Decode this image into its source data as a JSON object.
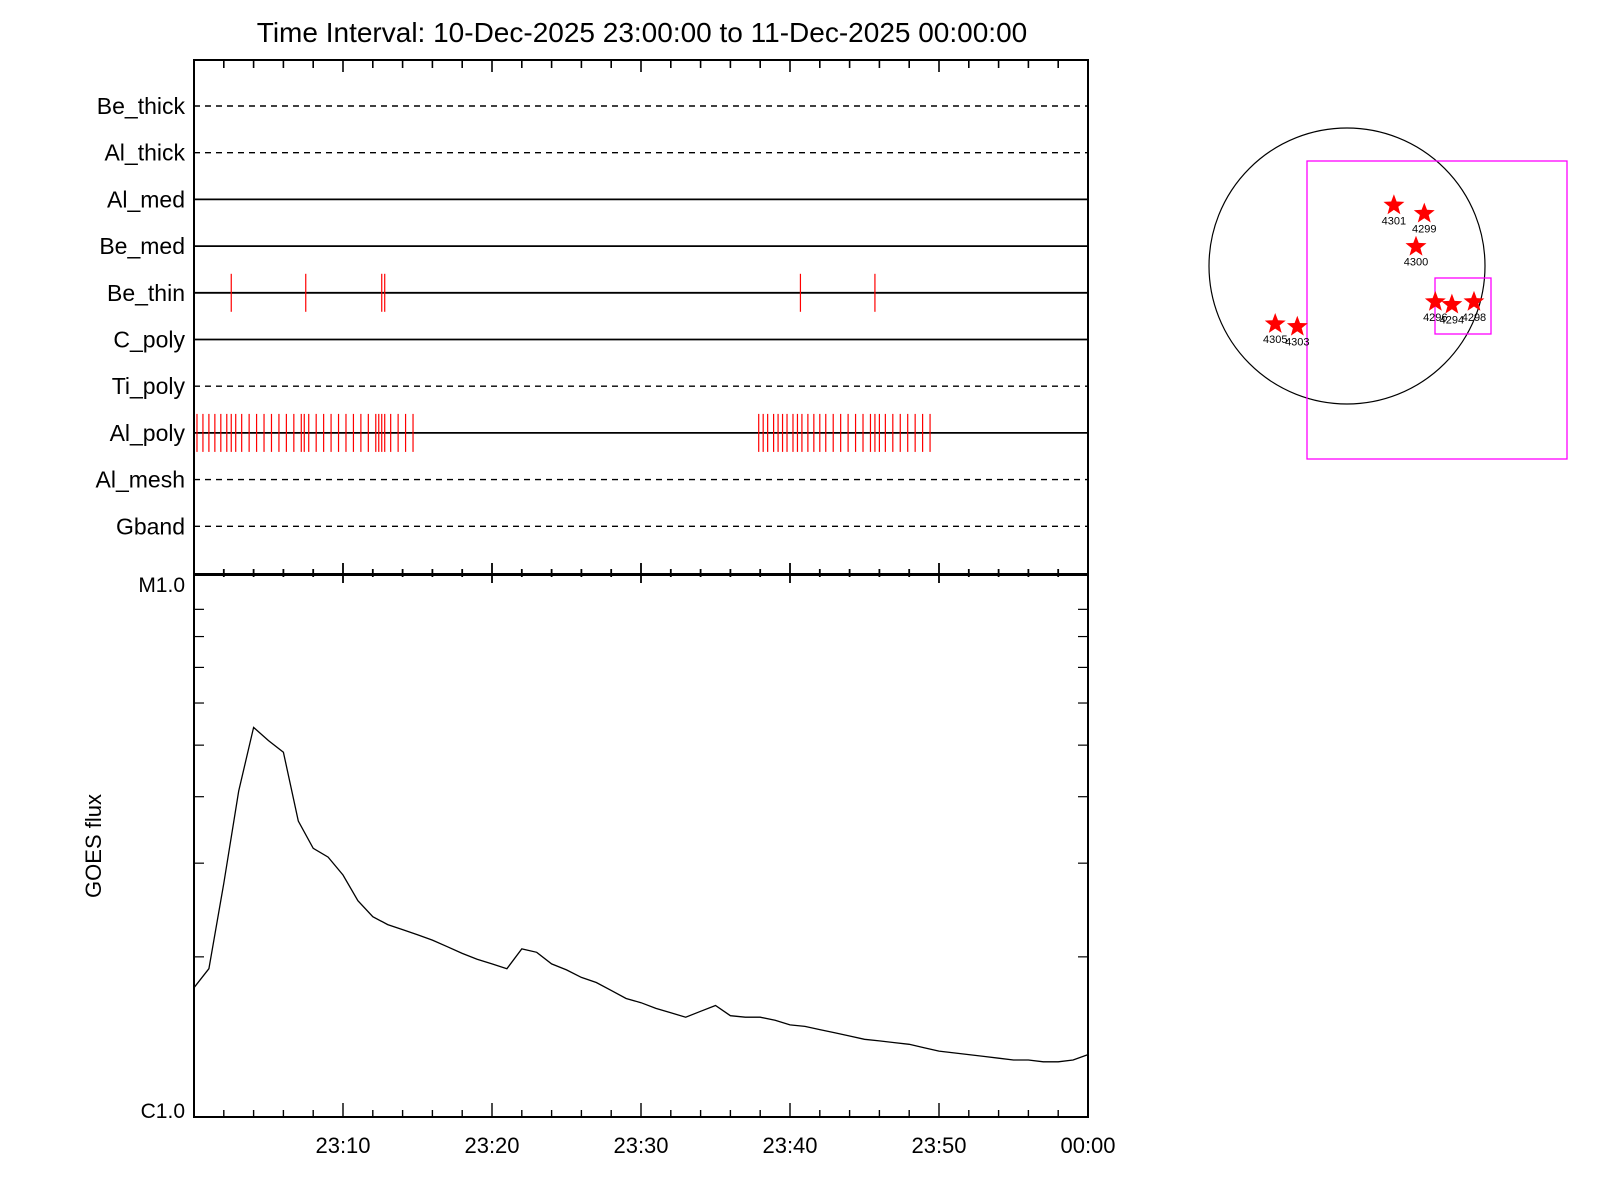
{
  "chart_data": {
    "type": "line",
    "title": "Time Interval: 10-Dec-2025 23:00:00 to 11-Dec-2025 00:00:00",
    "xlabel": "",
    "ylabel": "GOES flux",
    "xlim": [
      "23:00",
      "00:00"
    ],
    "x_ticks": [
      "23:10",
      "23:20",
      "23:30",
      "23:40",
      "23:50",
      "00:00"
    ],
    "ylim": [
      "C1.0",
      "M1.0"
    ],
    "y_scale": "log",
    "y_ticks": [
      "C1.0",
      "M1.0"
    ],
    "channels": [
      {
        "name": "Be_thick",
        "style": "dashed",
        "events": []
      },
      {
        "name": "Al_thick",
        "style": "dashed",
        "events": []
      },
      {
        "name": "Al_med",
        "style": "solid",
        "events": []
      },
      {
        "name": "Be_med",
        "style": "solid",
        "events": []
      },
      {
        "name": "Be_thin",
        "style": "solid",
        "events": [
          2.5,
          7.5,
          12.6,
          12.8,
          40.7,
          45.7
        ]
      },
      {
        "name": "C_poly",
        "style": "solid",
        "events": []
      },
      {
        "name": "Ti_poly",
        "style": "dashed",
        "events": []
      },
      {
        "name": "Al_poly",
        "style": "solid",
        "events": [
          0.2,
          0.6,
          1.0,
          1.4,
          1.8,
          2.2,
          2.5,
          2.8,
          3.2,
          3.7,
          4.2,
          4.7,
          5.2,
          5.7,
          6.2,
          6.7,
          7.2,
          7.4,
          7.7,
          8.2,
          8.7,
          9.2,
          9.7,
          10.2,
          10.7,
          11.2,
          11.7,
          12.2,
          12.4,
          12.6,
          12.8,
          13.2,
          13.7,
          14.2,
          14.7,
          37.9,
          38.2,
          38.5,
          38.9,
          39.2,
          39.5,
          39.8,
          40.2,
          40.5,
          40.8,
          41.2,
          41.6,
          42.0,
          42.4,
          42.9,
          43.4,
          43.9,
          44.4,
          44.9,
          45.4,
          45.7,
          46.0,
          46.4,
          46.9,
          47.4,
          47.9,
          48.4,
          48.9,
          49.4
        ]
      },
      {
        "name": "Al_mesh",
        "style": "dashed",
        "events": []
      },
      {
        "name": "Gband",
        "style": "dashed",
        "events": []
      }
    ],
    "series": [
      {
        "x": [
          0,
          1,
          2,
          3,
          4,
          5,
          6,
          7,
          8,
          9,
          10,
          11,
          12,
          13,
          14,
          15,
          16,
          17,
          18,
          19,
          20,
          21,
          22,
          23,
          24,
          25,
          26,
          27,
          28,
          29,
          30,
          31,
          32,
          33,
          34,
          35,
          36,
          37,
          38,
          39,
          40,
          41,
          42,
          43,
          44,
          45,
          46,
          47,
          48,
          49,
          50,
          51,
          52,
          53,
          54,
          55,
          56,
          57,
          58,
          59,
          60
        ],
        "values": [
          1.75,
          1.9,
          2.75,
          4.1,
          5.4,
          5.1,
          4.85,
          3.6,
          3.2,
          3.08,
          2.85,
          2.55,
          2.38,
          2.3,
          2.25,
          2.2,
          2.15,
          2.09,
          2.03,
          1.98,
          1.94,
          1.9,
          2.07,
          2.04,
          1.94,
          1.89,
          1.83,
          1.79,
          1.73,
          1.67,
          1.64,
          1.6,
          1.57,
          1.54,
          1.58,
          1.62,
          1.55,
          1.54,
          1.54,
          1.52,
          1.49,
          1.48,
          1.46,
          1.44,
          1.42,
          1.4,
          1.39,
          1.38,
          1.37,
          1.35,
          1.33,
          1.32,
          1.31,
          1.3,
          1.29,
          1.28,
          1.28,
          1.27,
          1.27,
          1.28,
          1.31
        ]
      }
    ],
    "solar_map": {
      "regions": [
        {
          "label": "4301",
          "x": 0.17,
          "y": 0.22
        },
        {
          "label": "4299",
          "x": 0.28,
          "y": 0.19
        },
        {
          "label": "4300",
          "x": 0.25,
          "y": 0.07
        },
        {
          "label": "4296",
          "x": 0.32,
          "y": -0.13
        },
        {
          "label": "4294",
          "x": 0.38,
          "y": -0.14
        },
        {
          "label": "4298",
          "x": 0.46,
          "y": -0.13
        },
        {
          "label": "4305",
          "x": -0.26,
          "y": -0.21
        },
        {
          "label": "4303",
          "x": -0.18,
          "y": -0.22
        }
      ],
      "circle_color": "#000000",
      "box_color": "#ff00ff",
      "marker_color": "#ff0000"
    }
  }
}
